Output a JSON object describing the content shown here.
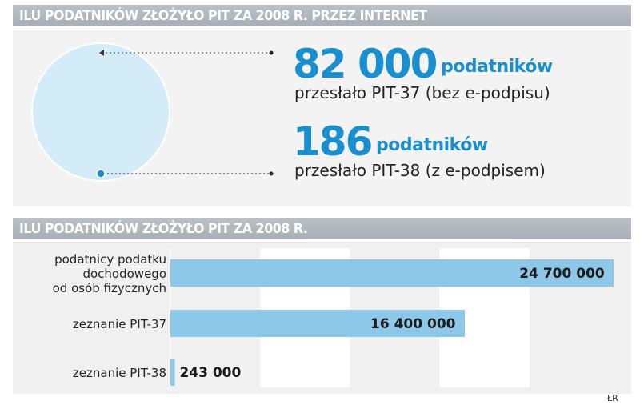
{
  "header1": "ILU PODATNIKÓW ZŁOŻYŁO PIT ZA 2008 R. PRZEZ INTERNET",
  "header2": "ILU PODATNIKÓW ZŁOŻYŁO PIT ZA 2008 R.",
  "stats": [
    {
      "number": "82 000",
      "unit": "podatników",
      "desc": "przesłało PIT-37 (bez e-podpisu)"
    },
    {
      "number": "186",
      "unit": "podatników",
      "desc": "przesłało PIT-38 (z e-podpisem)"
    }
  ],
  "credit": "ŁR",
  "colors": {
    "accent_blue": "#1a8fd0",
    "bar_blue": "#8ec8e8",
    "circle_fill": "#d4ebf8",
    "header_grey": "#aeb5bc"
  },
  "chart_data": [
    {
      "type": "pie",
      "title": "",
      "slices": [
        {
          "label": "przesłało PIT-37 (bez e-podpisu)",
          "value": 82000
        },
        {
          "label": "przesłało PIT-38 (z e-podpisem)",
          "value": 186
        }
      ]
    },
    {
      "type": "bar",
      "orientation": "horizontal",
      "title": "ILU PODATNIKÓW ZŁOŻYŁO PIT ZA 2008 R.",
      "categories": [
        [
          "podatnicy podatku",
          "dochodowego",
          "od osób fizycznych"
        ],
        [
          "zeznanie PIT-37"
        ],
        [
          "zeznanie PIT-38"
        ]
      ],
      "values": [
        24700000,
        16400000,
        243000
      ],
      "value_labels": [
        "24 700 000",
        "16 400 000",
        "243 000"
      ],
      "xlim": [
        0,
        25000000
      ],
      "grid": true
    }
  ]
}
